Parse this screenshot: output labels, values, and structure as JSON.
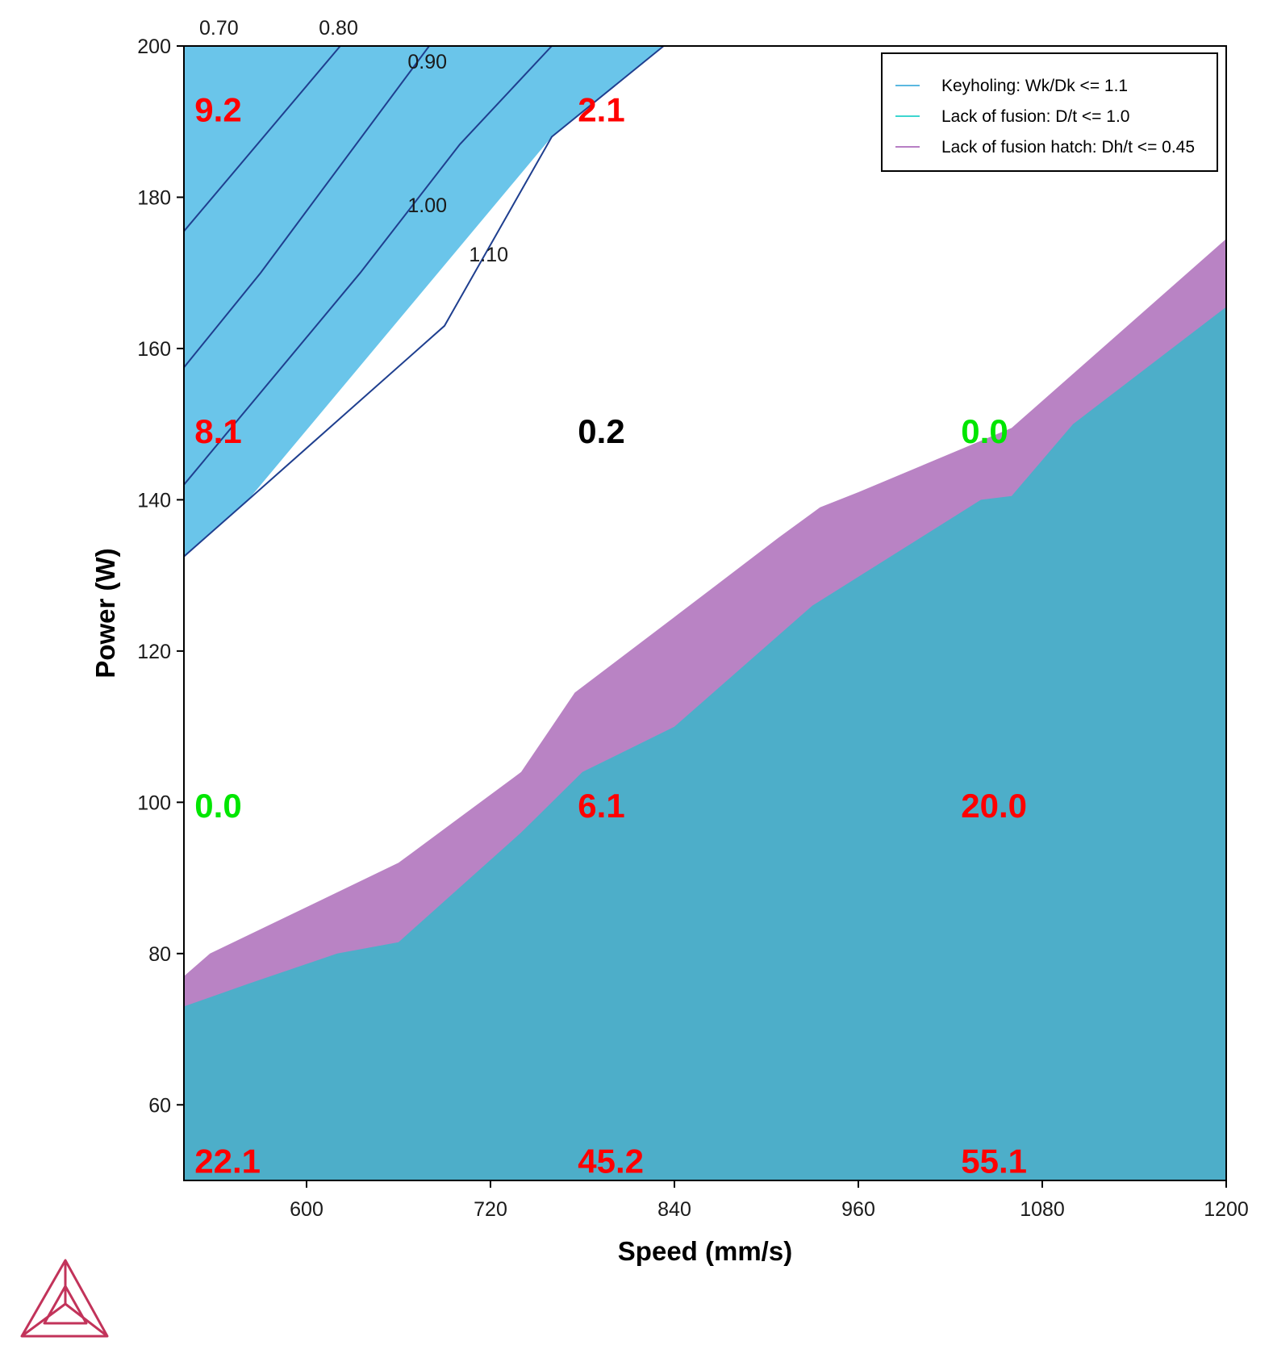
{
  "chart_data": {
    "type": "area",
    "xlabel": "Speed (mm/s)",
    "ylabel": "Power (W)",
    "xlim": [
      520,
      1200
    ],
    "ylim": [
      50,
      200
    ],
    "xticks": [
      600,
      720,
      840,
      960,
      1080,
      1200
    ],
    "yticks": [
      60,
      80,
      100,
      120,
      140,
      160,
      180,
      200
    ],
    "legend_position": "top-right",
    "grid": false,
    "legend": [
      {
        "label": "Keyholing: Wk/Dk <= 1.1",
        "color": "#5bb8e0"
      },
      {
        "label": "Lack of fusion: D/t <= 1.0",
        "color": "#3dd6d0"
      },
      {
        "label": "Lack of fusion hatch: Dh/t <= 0.45",
        "color": "#b77fc4"
      }
    ],
    "regions": {
      "keyholing": {
        "color": "#6ac5ea",
        "boundary": [
          [
            520,
            132.5
          ],
          [
            562,
            140
          ],
          [
            760,
            188
          ],
          [
            833,
            200
          ]
        ]
      },
      "lack_of_fusion_hatch": {
        "color": "#b983c4",
        "upper": [
          [
            520,
            77
          ],
          [
            537,
            80
          ],
          [
            660,
            92
          ],
          [
            740,
            104
          ],
          [
            760,
            110
          ],
          [
            775,
            114.5
          ],
          [
            840,
            124.5
          ],
          [
            908,
            135
          ],
          [
            935,
            139
          ],
          [
            960,
            141
          ],
          [
            1060,
            149.5
          ],
          [
            1200,
            174.5
          ]
        ]
      },
      "lack_of_fusion": {
        "color": "#4daec9",
        "upper": [
          [
            520,
            73
          ],
          [
            562,
            76
          ],
          [
            620,
            80
          ],
          [
            660,
            81.5
          ],
          [
            740,
            96
          ],
          [
            780,
            104
          ],
          [
            840,
            110
          ],
          [
            930,
            126
          ],
          [
            1040,
            140
          ],
          [
            1060,
            140.5
          ],
          [
            1100,
            150
          ],
          [
            1200,
            165.5
          ]
        ]
      }
    },
    "contours": [
      {
        "label": "0.70",
        "points": [
          [
            520,
            200
          ]
        ],
        "label_pos": [
          530,
          201.5
        ]
      },
      {
        "label": "0.80",
        "points": [
          [
            520,
            175.5
          ],
          [
            622,
            200
          ]
        ],
        "label_pos": [
          608,
          201.5
        ]
      },
      {
        "label": "0.90",
        "points": [
          [
            520,
            157.5
          ],
          [
            570,
            170
          ],
          [
            680,
            200
          ]
        ],
        "label_pos": [
          666,
          197
        ]
      },
      {
        "label": "1.00",
        "points": [
          [
            520,
            142
          ],
          [
            635,
            170
          ],
          [
            700,
            187
          ],
          [
            760,
            200
          ]
        ],
        "label_pos": [
          666,
          178
        ]
      },
      {
        "label": "1.10",
        "points": [
          [
            520,
            132.5
          ],
          [
            562,
            140
          ],
          [
            690,
            163
          ],
          [
            760,
            188
          ],
          [
            833,
            200
          ]
        ],
        "label_pos": [
          706,
          171.5
        ]
      }
    ],
    "annotations": [
      {
        "text": "9.2",
        "x": 527,
        "y": 191.5,
        "color": "#ff0000"
      },
      {
        "text": "2.1",
        "x": 777,
        "y": 191.5,
        "color": "#ff0000"
      },
      {
        "text": "8.1",
        "x": 527,
        "y": 149,
        "color": "#ff0000"
      },
      {
        "text": "0.2",
        "x": 777,
        "y": 149,
        "color": "#000000"
      },
      {
        "text": "0.0",
        "x": 1027,
        "y": 149,
        "color": "#00e600"
      },
      {
        "text": "0.0",
        "x": 527,
        "y": 99.5,
        "color": "#00e600"
      },
      {
        "text": "6.1",
        "x": 777,
        "y": 99.5,
        "color": "#ff0000"
      },
      {
        "text": "20.0",
        "x": 1027,
        "y": 99.5,
        "color": "#ff0000"
      },
      {
        "text": "22.1",
        "x": 527,
        "y": 52.5,
        "color": "#ff0000"
      },
      {
        "text": "45.2",
        "x": 777,
        "y": 52.5,
        "color": "#ff0000"
      },
      {
        "text": "55.1",
        "x": 1027,
        "y": 52.5,
        "color": "#ff0000"
      }
    ]
  },
  "logo": {
    "name": "thermo-calc-logo-icon",
    "color": "#c2335a"
  }
}
